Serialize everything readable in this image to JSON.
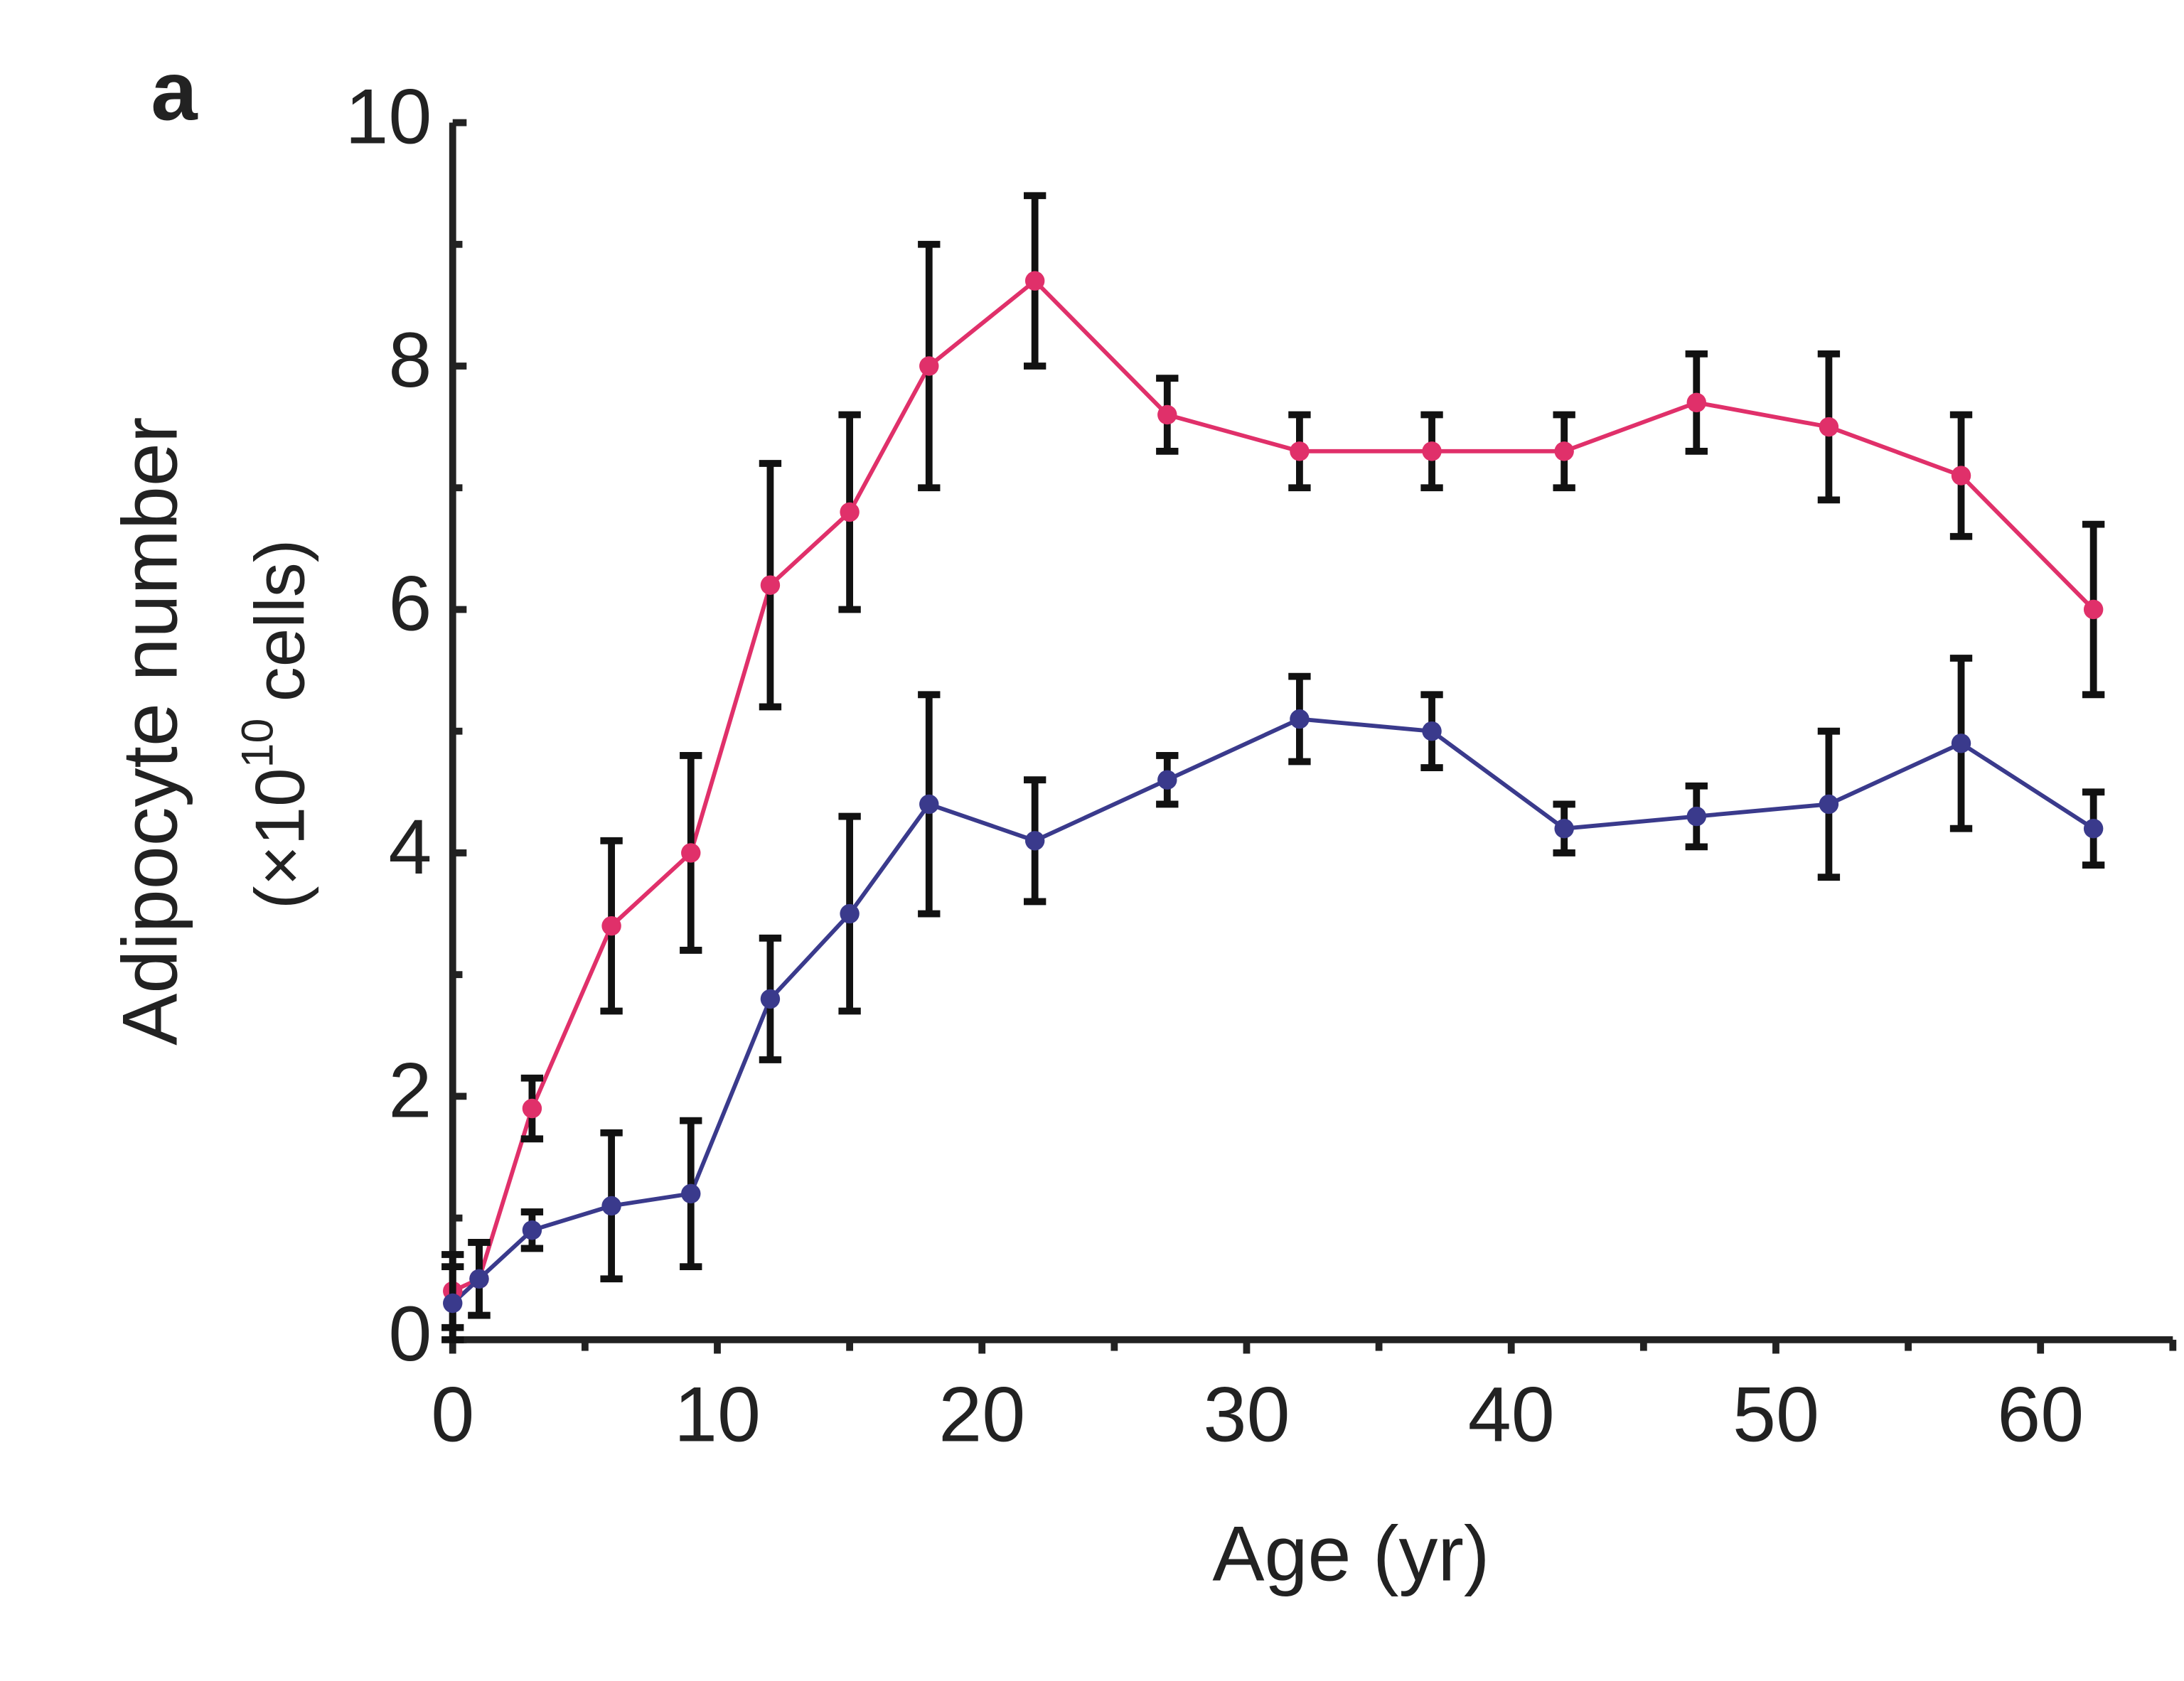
{
  "chart_data": {
    "type": "line",
    "panel_label": "a",
    "ylabel": "Adipocyte number",
    "ylabel_unit_start": "(×10",
    "ylabel_unit_exponent": "10",
    "ylabel_unit_end": "cells)",
    "xlabel": "Age (yr)",
    "x": [
      0,
      1,
      3,
      6,
      9,
      12,
      15,
      18,
      22,
      27,
      32,
      37,
      42,
      47,
      52,
      57,
      62
    ],
    "series": [
      {
        "color": "#e0306a",
        "values": [
          0.4,
          0.5,
          1.9,
          3.4,
          4.0,
          6.2,
          6.8,
          8.0,
          8.7,
          7.6,
          7.3,
          7.3,
          7.3,
          7.7,
          7.5,
          7.1,
          6.0
        ],
        "errors": [
          0.3,
          0.3,
          0.25,
          0.7,
          0.8,
          1.0,
          0.8,
          1.0,
          0.7,
          0.3,
          0.3,
          0.3,
          0.3,
          0.4,
          0.6,
          0.5,
          0.7
        ]
      },
      {
        "color": "#3a3a8c",
        "values": [
          0.3,
          0.5,
          0.9,
          1.1,
          1.2,
          2.8,
          3.5,
          4.4,
          4.1,
          4.6,
          5.1,
          5.0,
          4.2,
          4.3,
          4.4,
          4.9,
          4.2
        ],
        "errors": [
          0.3,
          0.3,
          0.15,
          0.6,
          0.6,
          0.5,
          0.8,
          0.9,
          0.5,
          0.2,
          0.35,
          0.3,
          0.2,
          0.25,
          0.6,
          0.7,
          0.3
        ]
      }
    ],
    "xlim": [
      0,
      65
    ],
    "ylim": [
      0,
      10
    ],
    "xticks": [
      0,
      10,
      20,
      30,
      40,
      50,
      60
    ],
    "yticks": [
      0,
      2,
      4,
      6,
      8,
      10
    ],
    "xminorticks": [
      5,
      15,
      25,
      35,
      45,
      55,
      65
    ],
    "yminorticks": [
      1,
      3,
      5,
      7,
      9
    ]
  }
}
